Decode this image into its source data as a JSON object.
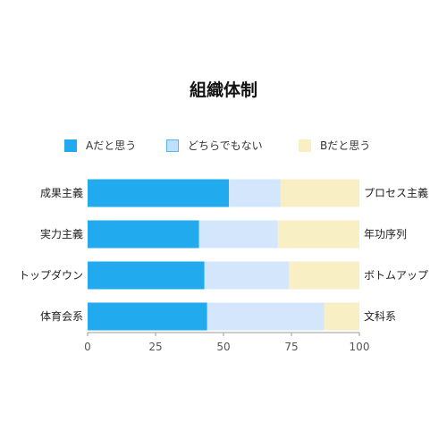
{
  "chart_data": {
    "type": "bar",
    "orientation": "horizontal",
    "stacked": true,
    "title": "組織体制",
    "categories": [
      "成果主義",
      "実力主義",
      "トップダウン",
      "体育会系"
    ],
    "right_labels": [
      "プロセス主義",
      "年功序列",
      "ボトムアップ",
      "文科系"
    ],
    "series": [
      {
        "name": "Aだと思う",
        "values": [
          52,
          41,
          43,
          44
        ],
        "color": "#22aaee"
      },
      {
        "name": "どちらでもない",
        "values": [
          19,
          29,
          31,
          43
        ],
        "color": "#d4e6fb"
      },
      {
        "name": "Bだと思う",
        "values": [
          29,
          30,
          26,
          13
        ],
        "color": "#f8efc4"
      }
    ],
    "xlim": [
      0,
      100
    ],
    "xticks": [
      "0",
      "25",
      "50",
      "75",
      "100"
    ],
    "legend_position": "top",
    "grid": false
  }
}
